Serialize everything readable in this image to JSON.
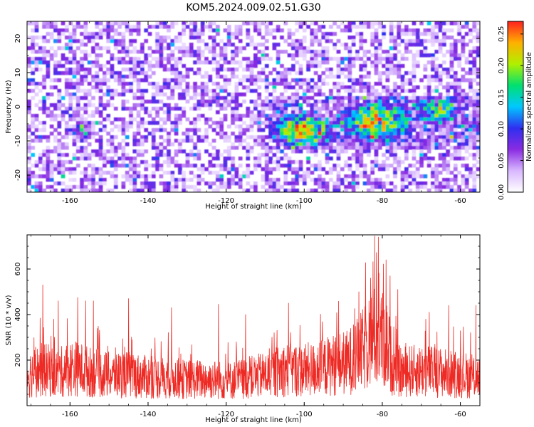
{
  "figure_title": "KOM5.2024.009.02.51.G30",
  "chart_data": [
    {
      "type": "heatmap",
      "title": "KOM5.2024.009.02.51.G30",
      "xlabel": "Height of straight line (km)",
      "ylabel": "Frequency (Hz)",
      "xlim": [
        -171,
        -55
      ],
      "ylim": [
        -25,
        25
      ],
      "x_ticks": [
        -160,
        -140,
        -120,
        -100,
        -80,
        -60
      ],
      "y_ticks": [
        20,
        10,
        0,
        -10,
        -20
      ],
      "colorbar": {
        "label": "Normalized spectral amplitude",
        "range": [
          0,
          0.27
        ],
        "ticks": [
          "0.00",
          "0.05",
          "0.10",
          "0.15",
          "0.20",
          "0.25"
        ],
        "colormap": [
          "#ffffff",
          "#d8b8ff",
          "#8a2be2",
          "#2f2ff0",
          "#00c8ff",
          "#00e070",
          "#b0f000",
          "#ffb000",
          "#ff2020"
        ]
      },
      "features": [
        {
          "x_range": [
            -158,
            -156
          ],
          "y_range": [
            -8,
            -5
          ],
          "level": 0.1
        },
        {
          "x_range": [
            -106,
            -95
          ],
          "y_range": [
            -10,
            -4
          ],
          "level": 0.22
        },
        {
          "x_range": [
            -88,
            -75
          ],
          "y_range": [
            -8,
            -1
          ],
          "level": 0.2
        },
        {
          "x_range": [
            -70,
            -62
          ],
          "y_range": [
            -3,
            1
          ],
          "level": 0.18
        }
      ]
    },
    {
      "type": "line",
      "xlabel": "Height of straight line (km)",
      "ylabel": "SNR (10 * v/v)",
      "xlim": [
        -171,
        -55
      ],
      "ylim": [
        0,
        750
      ],
      "x_ticks": [
        -160,
        -140,
        -120,
        -100,
        -80,
        -60
      ],
      "y_ticks": [
        200,
        400,
        600
      ],
      "series": [
        {
          "color": "#ee2a24",
          "x": [
            -171,
            -169,
            -167,
            -165,
            -163,
            -161,
            -159,
            -157,
            -155,
            -153,
            -151,
            -149,
            -147,
            -145,
            -143,
            -141,
            -139,
            -137,
            -135,
            -133,
            -131,
            -129,
            -127,
            -125,
            -123,
            -121,
            -119,
            -117,
            -115,
            -113,
            -111,
            -109,
            -107,
            -105,
            -103,
            -101,
            -99,
            -97,
            -95,
            -93,
            -91,
            -89,
            -87,
            -85,
            -83,
            -81,
            -79,
            -77,
            -75,
            -73,
            -71,
            -69,
            -67,
            -65,
            -63,
            -61,
            -59,
            -57,
            -55
          ],
          "baseline": [
            130,
            140,
            150,
            145,
            135,
            150,
            160,
            150,
            140,
            135,
            130,
            125,
            130,
            130,
            125,
            120,
            120,
            115,
            120,
            115,
            110,
            110,
            110,
            110,
            110,
            105,
            105,
            110,
            115,
            120,
            125,
            130,
            140,
            150,
            150,
            145,
            150,
            150,
            160,
            170,
            175,
            180,
            200,
            230,
            280,
            290,
            260,
            150,
            140,
            145,
            145,
            150,
            140,
            140,
            135,
            130,
            130,
            120,
            120
          ],
          "peaks": [
            {
              "x": -167,
              "y": 530
            },
            {
              "x": -163,
              "y": 460
            },
            {
              "x": -158,
              "y": 475
            },
            {
              "x": -156,
              "y": 460
            },
            {
              "x": -154,
              "y": 460
            },
            {
              "x": -145,
              "y": 470
            },
            {
              "x": -134,
              "y": 430
            },
            {
              "x": -122,
              "y": 445
            },
            {
              "x": -115,
              "y": 400
            },
            {
              "x": -104,
              "y": 450
            },
            {
              "x": -86,
              "y": 500
            },
            {
              "x": -83,
              "y": 560
            },
            {
              "x": -82,
              "y": 745
            },
            {
              "x": -81,
              "y": 740
            },
            {
              "x": -79,
              "y": 640
            },
            {
              "x": -78,
              "y": 570
            },
            {
              "x": -76,
              "y": 510
            },
            {
              "x": -68,
              "y": 410
            },
            {
              "x": -63,
              "y": 440
            },
            {
              "x": -56,
              "y": 440
            }
          ]
        }
      ]
    }
  ]
}
